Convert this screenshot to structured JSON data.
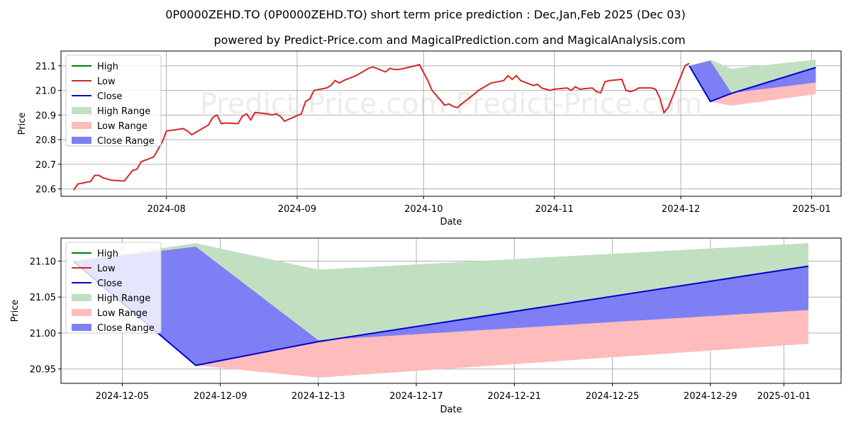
{
  "title": "0P0000ZEHD.TO (0P0000ZEHD.TO) short term price prediction : Dec,Jan,Feb 2025 (Dec 03)",
  "subtitle": "powered by Predict-Price.com and MagicalPrediction.com and MagicalAnalysis.com",
  "watermark": "Predict-Price.com",
  "colors": {
    "high": "#008000",
    "low": "#d62728",
    "close": "#0000cc",
    "high_range": "#c1dfc1",
    "low_range": "#ffbcbc",
    "close_range": "#7f7ff5"
  },
  "chart_data": [
    {
      "type": "line",
      "xlabel": "Date",
      "ylabel": "Price",
      "xlim": [
        "2024-07-07",
        "2025-01-08"
      ],
      "ylim": [
        20.57,
        21.16
      ],
      "x_ticks": [
        "2024-08-01",
        "2024-09-01",
        "2024-10-01",
        "2024-11-01",
        "2024-12-01",
        "2025-01-01"
      ],
      "x_tick_labels": [
        "2024-08",
        "2024-09",
        "2024-10",
        "2024-11",
        "2024-12",
        "2025-01"
      ],
      "y_ticks": [
        20.6,
        20.7,
        20.8,
        20.9,
        21.0,
        21.1
      ],
      "y_tick_labels": [
        "20.6",
        "20.7",
        "20.8",
        "20.9",
        "21.0",
        "21.1"
      ],
      "grid": true,
      "legend_position": "top-left",
      "legend": [
        "High",
        "Low",
        "Close",
        "High Range",
        "Low Range",
        "Close Range"
      ],
      "history": {
        "x": [
          "2024-07-10",
          "2024-07-11",
          "2024-07-14",
          "2024-07-15",
          "2024-07-16",
          "2024-07-17",
          "2024-07-19",
          "2024-07-22",
          "2024-07-24",
          "2024-07-25",
          "2024-07-26",
          "2024-07-29",
          "2024-07-30",
          "2024-07-31",
          "2024-08-01",
          "2024-08-05",
          "2024-08-06",
          "2024-08-07",
          "2024-08-08",
          "2024-08-11",
          "2024-08-12",
          "2024-08-13",
          "2024-08-14",
          "2024-08-15",
          "2024-08-18",
          "2024-08-19",
          "2024-08-20",
          "2024-08-21",
          "2024-08-22",
          "2024-08-25",
          "2024-08-26",
          "2024-08-27",
          "2024-08-28",
          "2024-08-29",
          "2024-09-02",
          "2024-09-03",
          "2024-09-04",
          "2024-09-05",
          "2024-09-08",
          "2024-09-09",
          "2024-09-10",
          "2024-09-11",
          "2024-09-12",
          "2024-09-15",
          "2024-09-16",
          "2024-09-17",
          "2024-09-18",
          "2024-09-19",
          "2024-09-22",
          "2024-09-23",
          "2024-09-24",
          "2024-09-25",
          "2024-09-26",
          "2024-09-29",
          "2024-09-30",
          "2024-10-02",
          "2024-10-03",
          "2024-10-06",
          "2024-10-07",
          "2024-10-08",
          "2024-10-09",
          "2024-10-10",
          "2024-10-13",
          "2024-10-14",
          "2024-10-15",
          "2024-10-16",
          "2024-10-17",
          "2024-10-20",
          "2024-10-21",
          "2024-10-22",
          "2024-10-23",
          "2024-10-24",
          "2024-10-27",
          "2024-10-28",
          "2024-10-29",
          "2024-10-30",
          "2024-10-31",
          "2024-11-01",
          "2024-11-04",
          "2024-11-05",
          "2024-11-06",
          "2024-11-07",
          "2024-11-10",
          "2024-11-11",
          "2024-11-12",
          "2024-11-13",
          "2024-11-14",
          "2024-11-17",
          "2024-11-18",
          "2024-11-19",
          "2024-11-20",
          "2024-11-21",
          "2024-11-24",
          "2024-11-25",
          "2024-11-26",
          "2024-11-27",
          "2024-11-28",
          "2024-12-02",
          "2024-12-03"
        ],
        "values": [
          20.595,
          20.62,
          20.63,
          20.655,
          20.655,
          20.645,
          20.635,
          20.632,
          20.675,
          20.68,
          20.71,
          20.73,
          20.76,
          20.79,
          20.835,
          20.845,
          20.835,
          20.82,
          20.83,
          20.86,
          20.89,
          20.9,
          20.865,
          20.868,
          20.865,
          20.895,
          20.905,
          20.88,
          20.91,
          20.905,
          20.9,
          20.905,
          20.895,
          20.875,
          20.905,
          20.955,
          20.965,
          21.0,
          21.01,
          21.02,
          21.04,
          21.03,
          21.04,
          21.06,
          21.07,
          21.08,
          21.09,
          21.095,
          21.075,
          21.09,
          21.085,
          21.085,
          21.088,
          21.1,
          21.105,
          21.04,
          21.0,
          20.94,
          20.945,
          20.935,
          20.93,
          20.945,
          20.985,
          21.0,
          21.01,
          21.02,
          21.03,
          21.04,
          21.06,
          21.045,
          21.06,
          21.04,
          21.02,
          21.025,
          21.01,
          21.005,
          21.0,
          21.005,
          21.01,
          21.0,
          21.015,
          21.005,
          21.01,
          20.995,
          20.99,
          21.035,
          21.04,
          21.045,
          21.0,
          20.995,
          21.0,
          21.01,
          21.01,
          21.005,
          20.97,
          20.91,
          20.93,
          21.1,
          21.11
        ]
      },
      "prediction": {
        "x": [
          "2024-12-03",
          "2024-12-08",
          "2024-12-13",
          "2025-01-02"
        ],
        "high": [
          21.1,
          21.125,
          21.088,
          21.125
        ],
        "low": [
          21.1,
          20.955,
          20.938,
          20.985
        ],
        "close_upper": [
          21.1,
          21.12,
          20.99,
          21.032
        ],
        "close_lower": [
          21.1,
          20.955,
          20.988,
          21.093
        ],
        "close": [
          21.1,
          20.955,
          20.988,
          21.093
        ]
      }
    },
    {
      "type": "line",
      "xlabel": "Date",
      "ylabel": "Price",
      "xlim": [
        "2024-12-02T12:00",
        "2025-01-03T08:00"
      ],
      "ylim": [
        20.93,
        21.132
      ],
      "x_ticks": [
        "2024-12-05",
        "2024-12-09",
        "2024-12-13",
        "2024-12-17",
        "2024-12-21",
        "2024-12-25",
        "2024-12-29",
        "2025-01-01"
      ],
      "x_tick_labels": [
        "2024-12-05",
        "2024-12-09",
        "2024-12-13",
        "2024-12-17",
        "2024-12-21",
        "2024-12-25",
        "2024-12-29",
        "2025-01-01"
      ],
      "y_ticks": [
        20.95,
        21.0,
        21.05,
        21.1
      ],
      "y_tick_labels": [
        "20.95",
        "21.00",
        "21.05",
        "21.10"
      ],
      "grid": true,
      "legend_position": "top-left",
      "legend": [
        "High",
        "Low",
        "Close",
        "High Range",
        "Low Range",
        "Close Range"
      ],
      "prediction": {
        "x": [
          "2024-12-03",
          "2024-12-08",
          "2024-12-13",
          "2025-01-02"
        ],
        "high": [
          21.1,
          21.125,
          21.088,
          21.125
        ],
        "low": [
          21.1,
          20.955,
          20.938,
          20.985
        ],
        "close_upper": [
          21.1,
          21.12,
          20.99,
          21.032
        ],
        "close_lower": [
          21.1,
          20.955,
          20.988,
          21.093
        ],
        "close": [
          21.1,
          20.955,
          20.988,
          21.093
        ]
      }
    }
  ]
}
